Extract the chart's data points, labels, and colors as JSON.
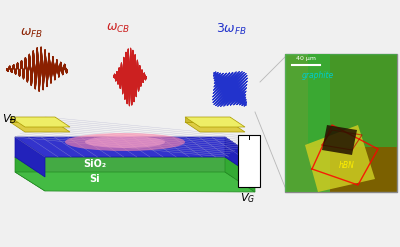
{
  "bg_color": "#f0f0f0",
  "omega_fb_color": "#8B2000",
  "omega_cb_color": "#CC2020",
  "threomega_fb_color": "#2233CC",
  "sio2_color": "#3333CC",
  "sio2_side_color": "#2222BB",
  "si_color": "#44AA44",
  "si_side_color": "#33AA33",
  "si_bottom_color": "#44BB44",
  "electrode_top_color": "#EEEE66",
  "electrode_face_color": "#DDCC44",
  "electrode_front_color": "#CCBB33",
  "electrode_edge_color": "#AA9900",
  "graphene_grid_color": "#AAAACC",
  "glow_color1": "#FF88AA",
  "glow_color2": "#FFAACC",
  "sio2_label": "SiO₂",
  "si_label": "Si",
  "scalebar_label": "40 μm",
  "graphite_label": "graphite",
  "hbn_label": "hBN",
  "micro_bg": "#7B6000",
  "micro_green1": "#44BB44",
  "micro_green2": "#33AA33",
  "micro_hbn": "#CCCC22",
  "micro_cyan": "#00CCCC",
  "micro_yellow": "#FFEE00"
}
